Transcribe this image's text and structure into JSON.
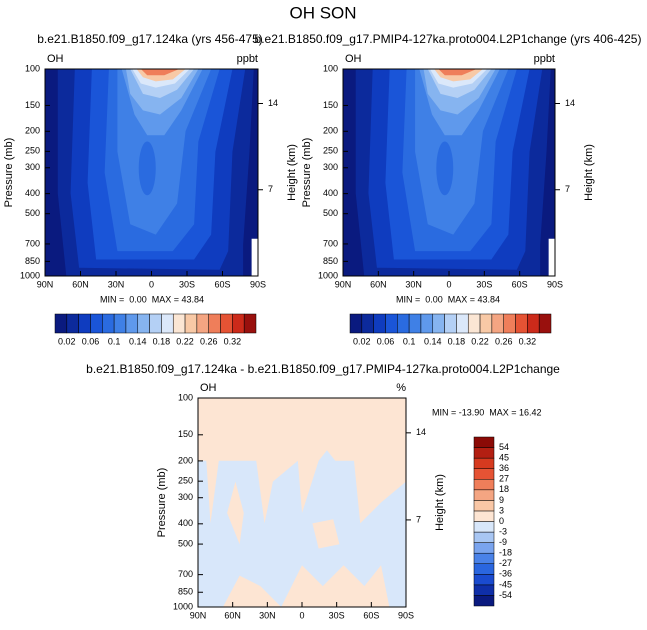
{
  "title": "OH SON",
  "chart_data": [
    {
      "type": "contour",
      "title": "b.e21.B1850.f09_g17.124ka (yrs 456-475)",
      "field_label": "OH",
      "units": "ppbt",
      "ylabel": "Pressure (mb)",
      "y2label": "Height (km)",
      "stats": "MIN =  0.00  MAX = 43.84",
      "xlim": [
        90,
        -90
      ],
      "xticks": [
        {
          "value": 90,
          "label": "90N"
        },
        {
          "value": 60,
          "label": "60N"
        },
        {
          "value": 30,
          "label": "30N"
        },
        0,
        {
          "value": -30,
          "label": "30S"
        },
        {
          "value": -60,
          "label": "60S"
        },
        {
          "value": -90,
          "label": "90S"
        }
      ],
      "ylim": [
        1000,
        100
      ],
      "y_scale": "log",
      "yticks": [
        100,
        150,
        200,
        250,
        300,
        400,
        500,
        700,
        850,
        1000
      ],
      "y2lim": [
        0,
        16.8
      ],
      "y2ticks": [
        14,
        7
      ],
      "colorbar": {
        "orientation": "horizontal",
        "labels": [
          0.02,
          0.06,
          0.1,
          0.14,
          0.18,
          0.22,
          0.26,
          0.32
        ],
        "colors": [
          "#0a1a7f",
          "#0c2a9c",
          "#0f3cbf",
          "#1a55d8",
          "#2a6be0",
          "#3f80e6",
          "#5f99ec",
          "#86b4f0",
          "#b4d0f5",
          "#dbe8fa",
          "#fbe6d4",
          "#f8c9a6",
          "#f4a582",
          "#ef7e5a",
          "#e55334",
          "#cc2a1a",
          "#99100d"
        ]
      }
    },
    {
      "type": "contour",
      "title": "b.e21.B1850.f09_g17.PMIP4-127ka.proto004.L2P1change (yrs 406-425)",
      "field_label": "OH",
      "units": "ppbt",
      "ylabel": "Pressure (mb)",
      "y2label": "Height (km)",
      "stats": "MIN =  0.00  MAX = 43.84",
      "xlim": [
        90,
        -90
      ],
      "xticks": [
        {
          "value": 90,
          "label": "90N"
        },
        {
          "value": 60,
          "label": "60N"
        },
        {
          "value": 30,
          "label": "30N"
        },
        0,
        {
          "value": -30,
          "label": "30S"
        },
        {
          "value": -60,
          "label": "60S"
        },
        {
          "value": -90,
          "label": "90S"
        }
      ],
      "ylim": [
        1000,
        100
      ],
      "y_scale": "log",
      "yticks": [
        100,
        150,
        200,
        250,
        300,
        400,
        500,
        700,
        850,
        1000
      ],
      "y2lim": [
        0,
        16.8
      ],
      "y2ticks": [
        14,
        7
      ],
      "colorbar": {
        "orientation": "horizontal",
        "labels": [
          0.02,
          0.06,
          0.1,
          0.14,
          0.18,
          0.22,
          0.26,
          0.32
        ],
        "colors": [
          "#0a1a7f",
          "#0c2a9c",
          "#0f3cbf",
          "#1a55d8",
          "#2a6be0",
          "#3f80e6",
          "#5f99ec",
          "#86b4f0",
          "#b4d0f5",
          "#dbe8fa",
          "#fbe6d4",
          "#f8c9a6",
          "#f4a582",
          "#ef7e5a",
          "#e55334",
          "#cc2a1a",
          "#99100d"
        ]
      }
    },
    {
      "type": "contour",
      "title": "b.e21.B1850.f09_g17.124ka - b.e21.B1850.f09_g17.PMIP4-127ka.proto004.L2P1change",
      "field_label": "OH",
      "units": "%",
      "ylabel": "Pressure (mb)",
      "y2label": "Height (km)",
      "stats": "MIN = -13.90  MAX = 16.42",
      "xlim": [
        90,
        -90
      ],
      "xticks": [
        {
          "value": 90,
          "label": "90N"
        },
        {
          "value": 60,
          "label": "60N"
        },
        {
          "value": 30,
          "label": "30N"
        },
        0,
        {
          "value": -30,
          "label": "30S"
        },
        {
          "value": -60,
          "label": "60S"
        },
        {
          "value": -90,
          "label": "90S"
        }
      ],
      "ylim": [
        1000,
        100
      ],
      "y_scale": "log",
      "yticks": [
        100,
        150,
        200,
        250,
        300,
        400,
        500,
        700,
        850,
        1000
      ],
      "y2lim": [
        0,
        16.8
      ],
      "y2ticks": [
        14,
        7
      ],
      "colorbar": {
        "orientation": "vertical",
        "labels": [
          -54,
          -45,
          -36,
          -27,
          -18,
          -9,
          -3,
          0,
          3,
          9,
          18,
          27,
          36,
          45,
          54
        ],
        "colors": [
          "#0a1a7f",
          "#0f2fa8",
          "#1a4bcf",
          "#2a66df",
          "#4a82e8",
          "#7aa4ee",
          "#a8c6f3",
          "#d8e7fa",
          "#fde5d3",
          "#f9c7a6",
          "#f4a582",
          "#ef7e5a",
          "#e55334",
          "#d63a1f",
          "#b31f12",
          "#8b0a06"
        ]
      }
    }
  ]
}
